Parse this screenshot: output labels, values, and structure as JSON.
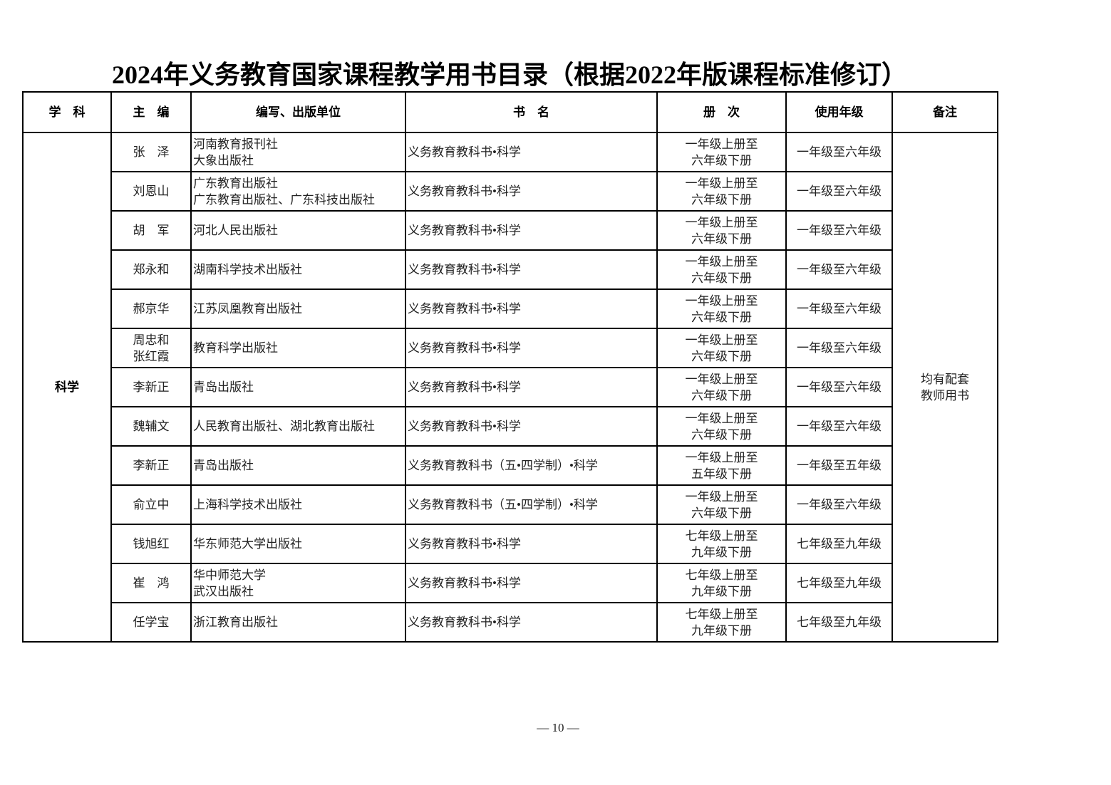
{
  "title": "2024年义务教育国家课程教学用书目录（根据2022年版课程标准修订）",
  "headers": [
    "学　科",
    "主　编",
    "编写、出版单位",
    "书　名",
    "册　次",
    "使用年级",
    "备注"
  ],
  "subject": "科学",
  "note": "均有配套\n教师用书",
  "rows": [
    {
      "editor": "张　泽",
      "publisher": "河南教育报刊社\n大象出版社",
      "book": "义务教育教科书•科学",
      "volumes": "一年级上册至\n六年级下册",
      "grades": "一年级至六年级"
    },
    {
      "editor": "刘恩山",
      "publisher": "广东教育出版社\n广东教育出版社、广东科技出版社",
      "book": "义务教育教科书•科学",
      "volumes": "一年级上册至\n六年级下册",
      "grades": "一年级至六年级"
    },
    {
      "editor": "胡　军",
      "publisher": "河北人民出版社",
      "book": "义务教育教科书•科学",
      "volumes": "一年级上册至\n六年级下册",
      "grades": "一年级至六年级"
    },
    {
      "editor": "郑永和",
      "publisher": "湖南科学技术出版社",
      "book": "义务教育教科书•科学",
      "volumes": "一年级上册至\n六年级下册",
      "grades": "一年级至六年级"
    },
    {
      "editor": "郝京华",
      "publisher": "江苏凤凰教育出版社",
      "book": "义务教育教科书•科学",
      "volumes": "一年级上册至\n六年级下册",
      "grades": "一年级至六年级"
    },
    {
      "editor": "周忠和\n张红霞",
      "publisher": "教育科学出版社",
      "book": "义务教育教科书•科学",
      "volumes": "一年级上册至\n六年级下册",
      "grades": "一年级至六年级"
    },
    {
      "editor": "李新正",
      "publisher": "青岛出版社",
      "book": "义务教育教科书•科学",
      "volumes": "一年级上册至\n六年级下册",
      "grades": "一年级至六年级"
    },
    {
      "editor": "魏辅文",
      "publisher": "人民教育出版社、湖北教育出版社",
      "book": "义务教育教科书•科学",
      "volumes": "一年级上册至\n六年级下册",
      "grades": "一年级至六年级"
    },
    {
      "editor": "李新正",
      "publisher": "青岛出版社",
      "book": "义务教育教科书（五•四学制）•科学",
      "volumes": "一年级上册至\n五年级下册",
      "grades": "一年级至五年级"
    },
    {
      "editor": "俞立中",
      "publisher": "上海科学技术出版社",
      "book": "义务教育教科书（五•四学制）•科学",
      "volumes": "一年级上册至\n六年级下册",
      "grades": "一年级至六年级"
    },
    {
      "editor": "钱旭红",
      "publisher": "华东师范大学出版社",
      "book": "义务教育教科书•科学",
      "volumes": "七年级上册至\n九年级下册",
      "grades": "七年级至九年级"
    },
    {
      "editor": "崔　鸿",
      "publisher": "华中师范大学\n武汉出版社",
      "book": "义务教育教科书•科学",
      "volumes": "七年级上册至\n九年级下册",
      "grades": "七年级至九年级"
    },
    {
      "editor": "任学宝",
      "publisher": "浙江教育出版社",
      "book": "义务教育教科书•科学",
      "volumes": "七年级上册至\n九年级下册",
      "grades": "七年级至九年级"
    }
  ],
  "page_number": "— 10 —"
}
